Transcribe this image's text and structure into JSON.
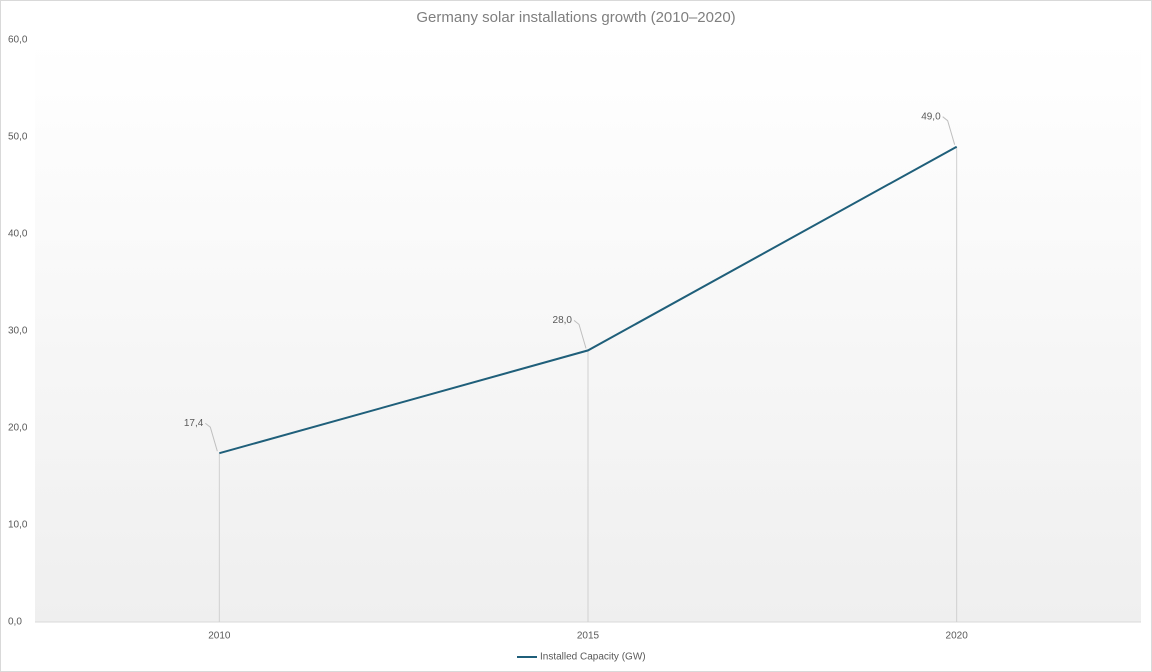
{
  "chart_data": {
    "type": "line",
    "title": "Germany solar installations growth (2010–2020)",
    "categories": [
      "2010",
      "2015",
      "2020"
    ],
    "series": [
      {
        "name": "Installed Capacity (GW)",
        "color": "#1f5f7a",
        "values": [
          17.4,
          28.0,
          49.0
        ],
        "value_labels": [
          "17,4",
          "28,0",
          "49,0"
        ]
      }
    ],
    "ylim": [
      0,
      60
    ],
    "yticks": [
      {
        "value": 0,
        "label": "0,0"
      },
      {
        "value": 10,
        "label": "10,0"
      },
      {
        "value": 20,
        "label": "20,0"
      },
      {
        "value": 30,
        "label": "30,0"
      },
      {
        "value": 40,
        "label": "40,0"
      },
      {
        "value": 50,
        "label": "50,0"
      },
      {
        "value": 60,
        "label": "60,0"
      }
    ],
    "grid": false,
    "legend": "bottom"
  }
}
